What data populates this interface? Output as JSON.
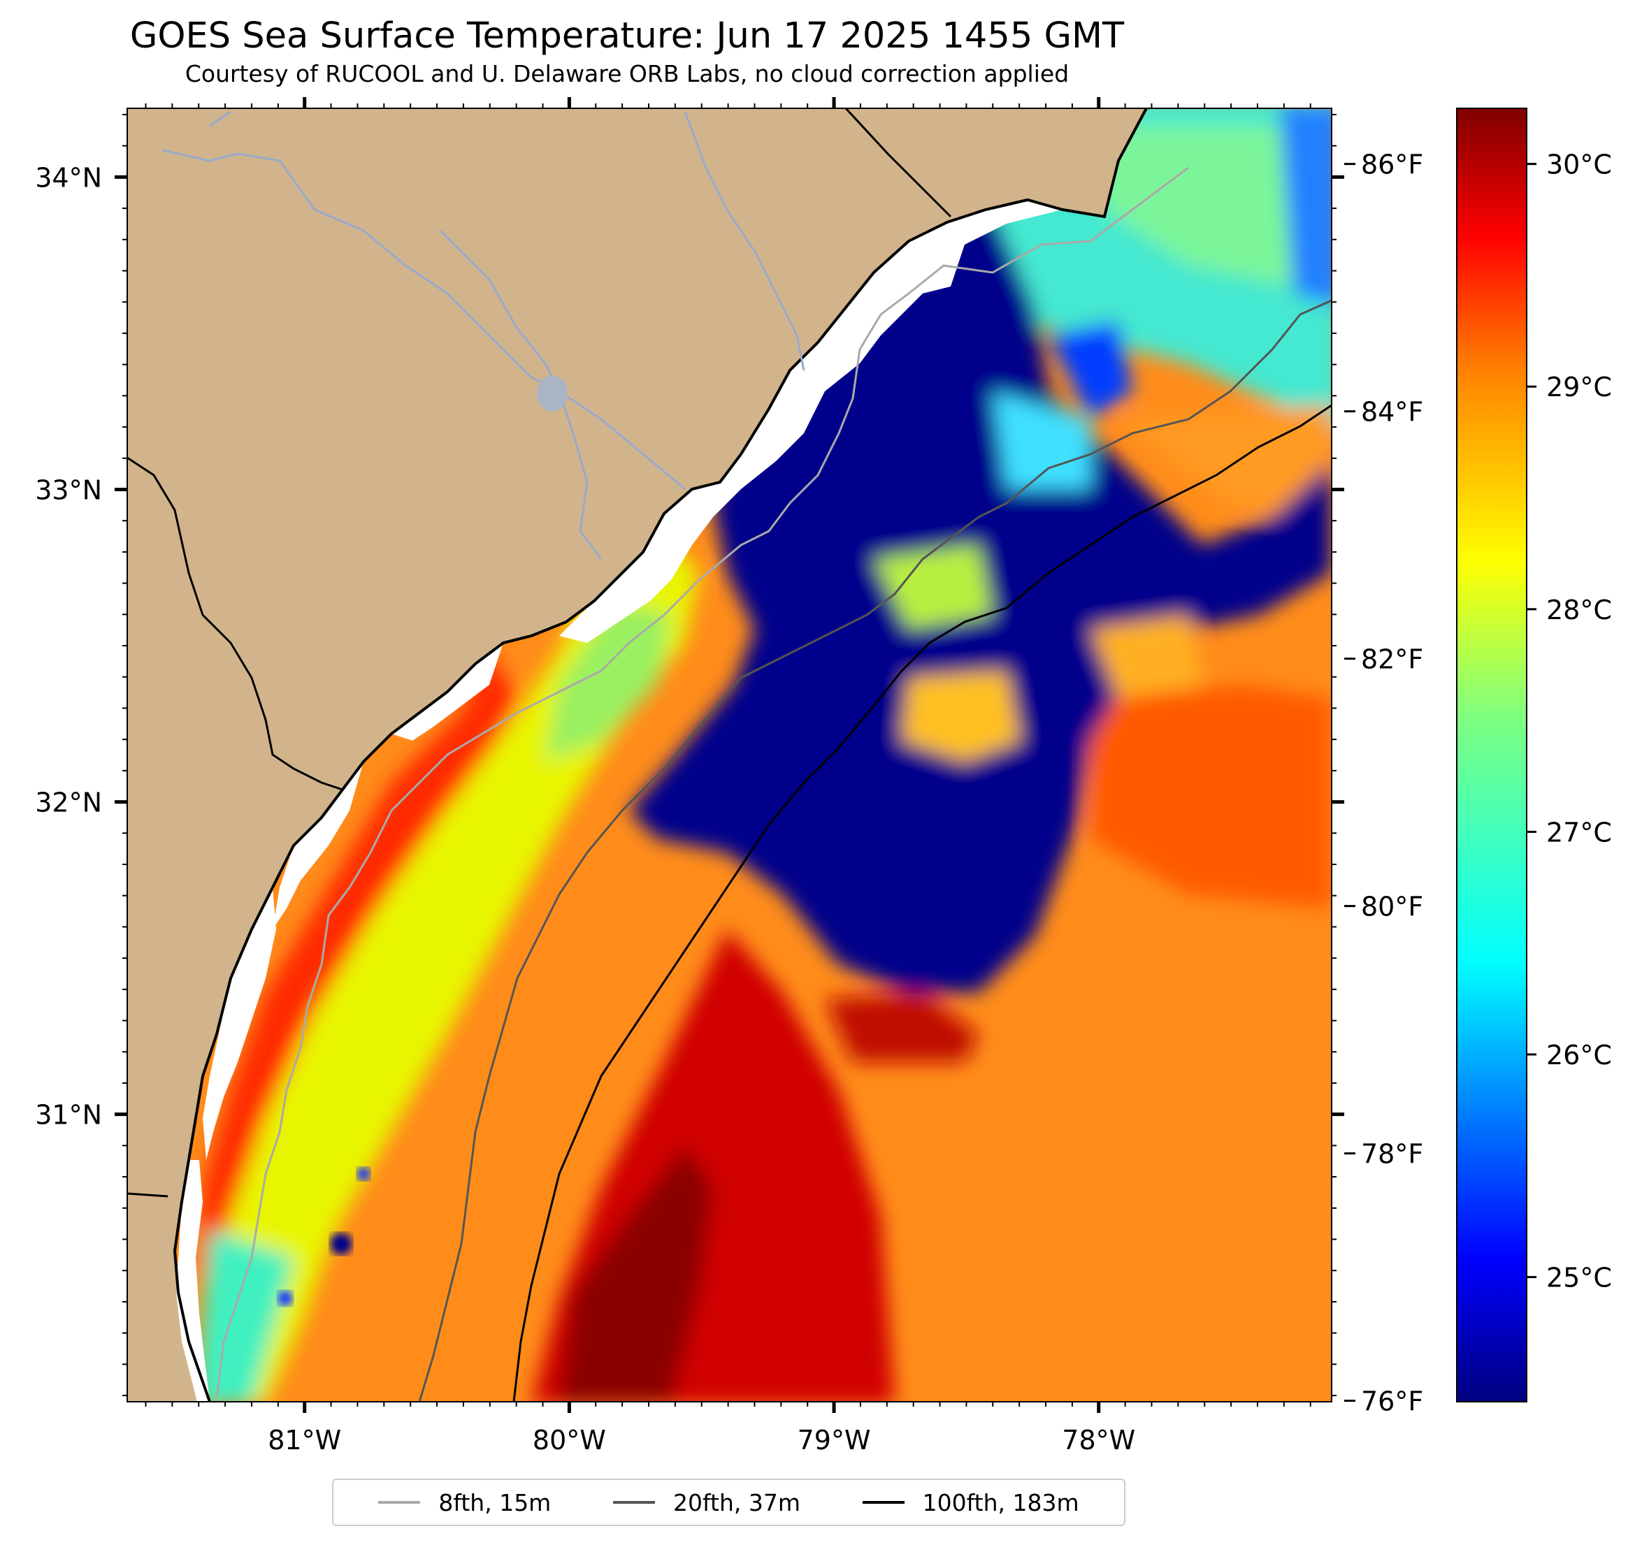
{
  "title": "GOES Sea Surface Temperature: Jun 17 2025 1455 GMT",
  "subtitle": "Courtesy of RUCOOL and U. Delaware ORB Labs, no cloud correction applied",
  "map": {
    "lon_range": [
      -81.67,
      -77.12
    ],
    "lat_range": [
      30.08,
      34.22
    ],
    "land_color": "#d2b48c",
    "river_color": "#99aacc",
    "lon_ticks": [
      {
        "value": -81,
        "label": "81°W"
      },
      {
        "value": -80,
        "label": "80°W"
      },
      {
        "value": -79,
        "label": "79°W"
      },
      {
        "value": -78,
        "label": "78°W"
      }
    ],
    "lat_ticks": [
      {
        "value": 31,
        "label": "31°N"
      },
      {
        "value": 32,
        "label": "32°N"
      },
      {
        "value": 33,
        "label": "33°N"
      },
      {
        "value": 34,
        "label": "34°N"
      }
    ]
  },
  "colorbar": {
    "celsius_range": [
      24.44,
      30.25
    ],
    "celsius_ticks": [
      {
        "value": 25,
        "label": "25°C"
      },
      {
        "value": 26,
        "label": "26°C"
      },
      {
        "value": 27,
        "label": "27°C"
      },
      {
        "value": 28,
        "label": "28°C"
      },
      {
        "value": 29,
        "label": "29°C"
      },
      {
        "value": 30,
        "label": "30°C"
      }
    ],
    "fahrenheit_ticks": [
      {
        "value": 76,
        "label": "76°F"
      },
      {
        "value": 78,
        "label": "78°F"
      },
      {
        "value": 80,
        "label": "80°F"
      },
      {
        "value": 82,
        "label": "82°F"
      },
      {
        "value": 84,
        "label": "84°F"
      },
      {
        "value": 86,
        "label": "86°F"
      }
    ],
    "colormap": [
      "#00007f",
      "#0000ff",
      "#007fff",
      "#00ffff",
      "#7fff7f",
      "#ffff00",
      "#ff7f00",
      "#ff0000",
      "#7f0000"
    ]
  },
  "legend": {
    "items": [
      {
        "label": "8fth, 15m",
        "color": "#aaaaaa"
      },
      {
        "label": "20fth, 37m",
        "color": "#555555"
      },
      {
        "label": "100fth, 183m",
        "color": "#000000"
      }
    ]
  }
}
